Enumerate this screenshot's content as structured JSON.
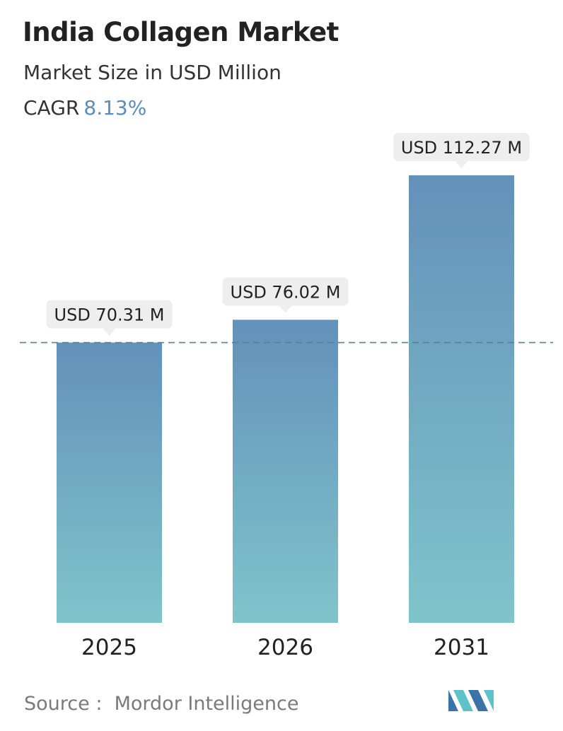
{
  "header": {
    "title": "India Collagen Market",
    "subtitle": "Market Size in USD Million",
    "cagr_label": "CAGR",
    "cagr_value": "8.13%"
  },
  "chart_data": {
    "type": "bar",
    "title": "India Collagen Market",
    "subtitle": "Market Size in USD Million",
    "categories": [
      "2025",
      "2026",
      "2031"
    ],
    "values": [
      70.31,
      76.02,
      112.27
    ],
    "value_labels": [
      "USD 70.31 M",
      "USD 76.02 M",
      "USD 112.27 M"
    ],
    "unit": "USD Million",
    "ylim": [
      0,
      125.2
    ],
    "reference_line_value": 70.31,
    "grid": false,
    "legend": "none",
    "colors": {
      "bar_top": "#6391ba",
      "bar_bottom": "#80c4cb",
      "reference_line": "#5a7d9a",
      "label_bg": "#eeeeee",
      "label_text": "#222222",
      "tick_text": "#222222"
    }
  },
  "footer": {
    "source_label": "Source :",
    "source_name": "Mordor Intelligence",
    "logo_icon": "mordor-intelligence-logo-icon",
    "logo_colors": [
      "#3a73a8",
      "#5ec3c9"
    ]
  }
}
